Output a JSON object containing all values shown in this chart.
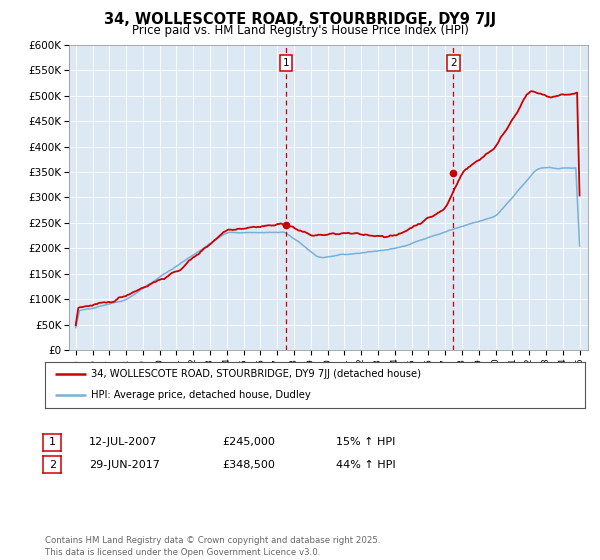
{
  "title": "34, WOLLESCOTE ROAD, STOURBRIDGE, DY9 7JJ",
  "subtitle": "Price paid vs. HM Land Registry's House Price Index (HPI)",
  "legend_line1": "34, WOLLESCOTE ROAD, STOURBRIDGE, DY9 7JJ (detached house)",
  "legend_line2": "HPI: Average price, detached house, Dudley",
  "transaction1_date": "12-JUL-2007",
  "transaction1_price": "£245,000",
  "transaction1_hpi": "15% ↑ HPI",
  "transaction1_year": 2007.53,
  "transaction1_value": 245000,
  "transaction2_date": "29-JUN-2017",
  "transaction2_price": "£348,500",
  "transaction2_hpi": "44% ↑ HPI",
  "transaction2_year": 2017.49,
  "transaction2_value": 348500,
  "hpi_color": "#7ab0d4",
  "price_color": "#cc0000",
  "vline_color": "#cc0000",
  "plot_bg_color": "#dce9f5",
  "ylim_min": 0,
  "ylim_max": 600000,
  "footer_text": "Contains HM Land Registry data © Crown copyright and database right 2025.\nThis data is licensed under the Open Government Licence v3.0."
}
